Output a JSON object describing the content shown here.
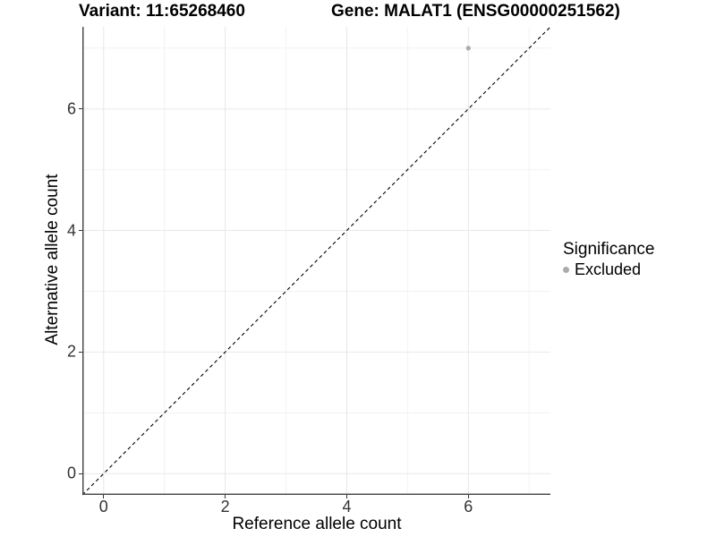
{
  "chart_data": {
    "type": "scatter",
    "titles": [
      "Variant: 11:65268460",
      "Gene: MALAT1 (ENSG00000251562)"
    ],
    "xlabel": "Reference allele count",
    "ylabel": "Alternative allele count",
    "xlim": [
      -0.35,
      7.35
    ],
    "ylim": [
      -0.35,
      7.35
    ],
    "x_breaks": [
      0,
      2,
      4,
      6
    ],
    "y_breaks": [
      0,
      2,
      4,
      6
    ],
    "x_minor_breaks": [
      1,
      3,
      5,
      7
    ],
    "y_minor_breaks": [
      1,
      3,
      5,
      7
    ],
    "grid": "major+minor",
    "legend_position": "right",
    "series": [
      {
        "name": "Excluded",
        "color": "#ababab",
        "points": [
          {
            "x": 6,
            "y": 7
          }
        ]
      }
    ],
    "reference_line": {
      "type": "identity",
      "slope": 1,
      "intercept": 0,
      "linetype": "dashed",
      "color": "#000000"
    },
    "legend": {
      "title": "Significance",
      "entries": [
        {
          "label": "Excluded",
          "color": "#ababab"
        }
      ]
    },
    "style": {
      "background": "#ffffff",
      "grid_major": "#e8e8e8",
      "grid_minor": "#f2f2f2",
      "axis_line": "#4d4d4d",
      "tick_color": "#333333",
      "tick_label_color": "#333333",
      "point_radius": 2.6
    }
  }
}
